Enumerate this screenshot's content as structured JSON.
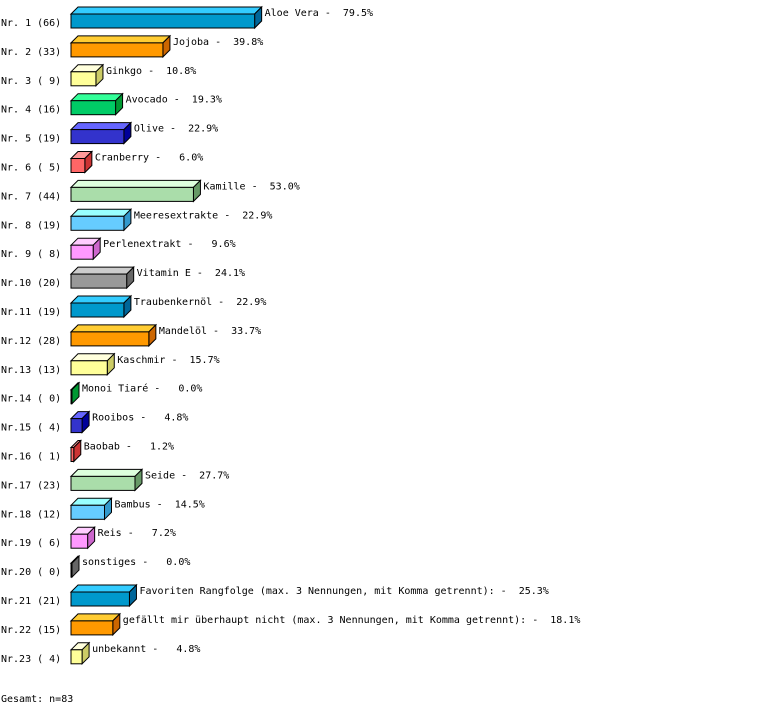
{
  "chart_data": {
    "type": "bar",
    "orientation": "horizontal",
    "style": "3d",
    "xlim": [
      0,
      100
    ],
    "grid": false,
    "rows": [
      {
        "rank": "Nr. 1",
        "count": "(66)",
        "label": "Aloe Vera",
        "percent": 79.5,
        "value_label": "79.5%"
      },
      {
        "rank": "Nr. 2",
        "count": "(33)",
        "label": "Jojoba",
        "percent": 39.8,
        "value_label": "39.8%"
      },
      {
        "rank": "Nr. 3",
        "count": "( 9)",
        "label": "Ginkgo",
        "percent": 10.8,
        "value_label": "10.8%"
      },
      {
        "rank": "Nr. 4",
        "count": "(16)",
        "label": "Avocado",
        "percent": 19.3,
        "value_label": "19.3%"
      },
      {
        "rank": "Nr. 5",
        "count": "(19)",
        "label": "Olive",
        "percent": 22.9,
        "value_label": "22.9%"
      },
      {
        "rank": "Nr. 6",
        "count": "( 5)",
        "label": "Cranberry",
        "percent": 6.0,
        "value_label": " 6.0%"
      },
      {
        "rank": "Nr. 7",
        "count": "(44)",
        "label": "Kamille",
        "percent": 53.0,
        "value_label": "53.0%"
      },
      {
        "rank": "Nr. 8",
        "count": "(19)",
        "label": "Meeresextrakte",
        "percent": 22.9,
        "value_label": "22.9%"
      },
      {
        "rank": "Nr. 9",
        "count": "( 8)",
        "label": "Perlenextrakt",
        "percent": 9.6,
        "value_label": " 9.6%"
      },
      {
        "rank": "Nr.10",
        "count": "(20)",
        "label": "Vitamin E",
        "percent": 24.1,
        "value_label": "24.1%"
      },
      {
        "rank": "Nr.11",
        "count": "(19)",
        "label": "Traubenkernöl",
        "percent": 22.9,
        "value_label": "22.9%"
      },
      {
        "rank": "Nr.12",
        "count": "(28)",
        "label": "Mandelöl",
        "percent": 33.7,
        "value_label": "33.7%"
      },
      {
        "rank": "Nr.13",
        "count": "(13)",
        "label": "Kaschmir",
        "percent": 15.7,
        "value_label": "15.7%"
      },
      {
        "rank": "Nr.14",
        "count": "( 0)",
        "label": "Monoi Tiaré",
        "percent": 0.0,
        "value_label": " 0.0%"
      },
      {
        "rank": "Nr.15",
        "count": "( 4)",
        "label": "Rooibos",
        "percent": 4.8,
        "value_label": " 4.8%"
      },
      {
        "rank": "Nr.16",
        "count": "( 1)",
        "label": "Baobab",
        "percent": 1.2,
        "value_label": " 1.2%"
      },
      {
        "rank": "Nr.17",
        "count": "(23)",
        "label": "Seide",
        "percent": 27.7,
        "value_label": "27.7%"
      },
      {
        "rank": "Nr.18",
        "count": "(12)",
        "label": "Bambus",
        "percent": 14.5,
        "value_label": "14.5%"
      },
      {
        "rank": "Nr.19",
        "count": "( 6)",
        "label": "Reis",
        "percent": 7.2,
        "value_label": " 7.2%"
      },
      {
        "rank": "Nr.20",
        "count": "( 0)",
        "label": "sonstiges",
        "percent": 0.0,
        "value_label": " 0.0%"
      },
      {
        "rank": "Nr.21",
        "count": "(21)",
        "label": "Favoriten Rangfolge (max. 3 Nennungen, mit Komma getrennt):",
        "percent": 25.3,
        "value_label": "25.3%"
      },
      {
        "rank": "Nr.22",
        "count": "(15)",
        "label": "gefällt mir überhaupt nicht (max. 3 Nennungen, mit Komma getrennt):",
        "percent": 18.1,
        "value_label": "18.1%"
      },
      {
        "rank": "Nr.23",
        "count": "( 4)",
        "label": "unbekannt",
        "percent": 4.8,
        "value_label": " 4.8%"
      }
    ],
    "palette": [
      {
        "front": "#0099cc",
        "top": "#33ccff",
        "side": "#006699"
      },
      {
        "front": "#ff9900",
        "top": "#ffcc33",
        "side": "#cc6600"
      },
      {
        "front": "#ffff99",
        "top": "#ffffdd",
        "side": "#cccc66"
      },
      {
        "front": "#00cc66",
        "top": "#33ff99",
        "side": "#009933"
      },
      {
        "front": "#3333cc",
        "top": "#6666ff",
        "side": "#000099"
      },
      {
        "front": "#ff6666",
        "top": "#ff9999",
        "side": "#cc3333"
      },
      {
        "front": "#aaddaa",
        "top": "#ddffdd",
        "side": "#669966"
      },
      {
        "front": "#66ccff",
        "top": "#99ffff",
        "side": "#3399cc"
      },
      {
        "front": "#ff99ff",
        "top": "#ffccff",
        "side": "#cc66cc"
      },
      {
        "front": "#999999",
        "top": "#cccccc",
        "side": "#666666"
      }
    ],
    "footer": "Gesamt: n=83"
  }
}
